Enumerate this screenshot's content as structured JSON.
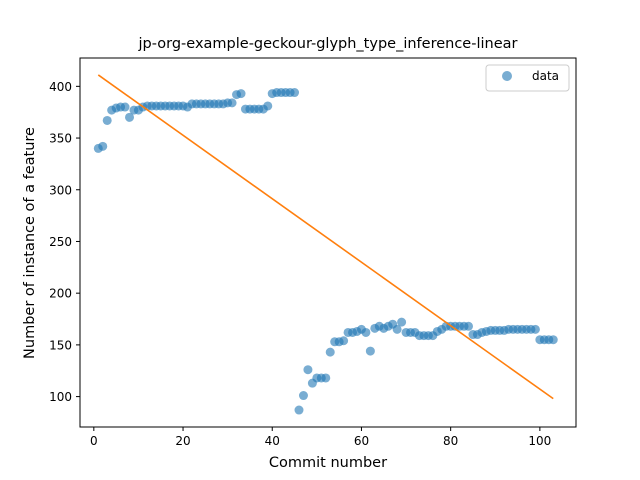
{
  "chart_data": {
    "type": "scatter",
    "title": "jp-org-example-geckour-glyph_type_inference-linear",
    "xlabel": "Commit number",
    "ylabel": "Number of instance of a feature",
    "xlim": [
      -3.1,
      108.1
    ],
    "ylim": [
      70.6,
      427.4
    ],
    "xticks": [
      0,
      20,
      40,
      60,
      80,
      100
    ],
    "yticks": [
      100,
      150,
      200,
      250,
      300,
      350,
      400
    ],
    "grid": false,
    "legend": {
      "position": "top-right",
      "entries": [
        "data"
      ]
    },
    "colors": {
      "data": "#1f77b4",
      "fit": "#ff7f0e"
    },
    "series": [
      {
        "name": "data",
        "kind": "scatter",
        "x": [
          1,
          2,
          3,
          4,
          5,
          6,
          7,
          8,
          9,
          10,
          11,
          12,
          13,
          14,
          15,
          16,
          17,
          18,
          19,
          20,
          21,
          22,
          23,
          24,
          25,
          26,
          27,
          28,
          29,
          30,
          31,
          32,
          33,
          34,
          35,
          36,
          37,
          38,
          39,
          40,
          41,
          42,
          43,
          44,
          45,
          46,
          47,
          48,
          49,
          50,
          51,
          52,
          53,
          54,
          55,
          56,
          57,
          58,
          59,
          60,
          61,
          62,
          63,
          64,
          65,
          66,
          67,
          68,
          69,
          70,
          71,
          72,
          73,
          74,
          75,
          76,
          77,
          78,
          79,
          80,
          81,
          82,
          83,
          84,
          85,
          86,
          87,
          88,
          89,
          90,
          91,
          92,
          93,
          94,
          95,
          96,
          97,
          98,
          99,
          100,
          101,
          102,
          103
        ],
        "y": [
          340,
          342,
          367,
          377,
          379,
          380,
          380,
          370,
          377,
          377,
          380,
          381,
          381,
          381,
          381,
          381,
          381,
          381,
          381,
          381,
          380,
          383,
          383,
          383,
          383,
          383,
          383,
          383,
          383,
          384,
          384,
          392,
          393,
          378,
          378,
          378,
          378,
          378,
          381,
          393,
          394,
          394,
          394,
          394,
          394,
          87,
          101,
          126,
          113,
          118,
          118,
          118,
          143,
          153,
          153,
          154,
          162,
          162,
          163,
          165,
          162,
          144,
          166,
          168,
          166,
          168,
          170,
          165,
          172,
          162,
          162,
          162,
          159,
          159,
          159,
          159,
          163,
          165,
          168,
          168,
          168,
          168,
          168,
          168,
          160,
          160,
          162,
          163,
          164,
          164,
          164,
          164,
          165,
          165,
          165,
          165,
          165,
          165,
          165,
          155,
          155,
          155,
          155
        ]
      },
      {
        "name": "",
        "kind": "line",
        "x": [
          1,
          103
        ],
        "y": [
          411,
          98
        ]
      }
    ]
  }
}
